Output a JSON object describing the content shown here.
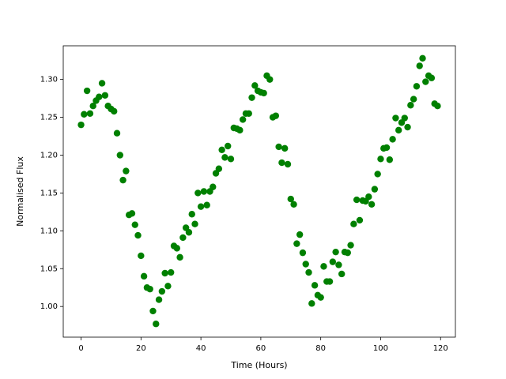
{
  "chart_data": {
    "type": "scatter",
    "xlabel": "Time (Hours)",
    "ylabel": "Normalised Flux",
    "color": "#008000",
    "x": [
      0,
      1,
      2,
      3,
      4,
      5,
      6,
      7,
      8,
      9,
      10,
      11,
      12,
      13,
      14,
      15,
      16,
      17,
      18,
      19,
      20,
      21,
      22,
      23,
      24,
      25,
      26,
      27,
      28,
      29,
      30,
      31,
      32,
      33,
      34,
      35,
      36,
      37,
      38,
      39,
      40,
      41,
      42,
      43,
      44,
      45,
      46,
      47,
      48,
      49,
      50,
      51,
      52,
      53,
      54,
      55,
      56,
      57,
      58,
      59,
      60,
      61,
      62,
      63,
      64,
      65,
      66,
      67,
      68,
      69,
      70,
      71,
      72,
      73,
      74,
      75,
      76,
      77,
      78,
      79,
      80,
      81,
      82,
      83,
      84,
      85,
      86,
      87,
      88,
      89,
      90,
      91,
      92,
      93,
      94,
      95,
      96,
      97,
      98,
      99,
      100,
      101,
      102,
      103,
      104,
      105,
      106,
      107,
      108,
      109,
      110,
      111,
      112,
      113,
      114,
      115,
      116,
      117,
      118,
      119
    ],
    "values": [
      1.24,
      1.254,
      1.285,
      1.255,
      1.265,
      1.272,
      1.277,
      1.295,
      1.279,
      1.265,
      1.261,
      1.258,
      1.229,
      1.2,
      1.167,
      1.179,
      1.121,
      1.123,
      1.108,
      1.094,
      1.067,
      1.04,
      1.025,
      1.023,
      0.994,
      0.977,
      1.009,
      1.02,
      1.044,
      1.027,
      1.045,
      1.08,
      1.077,
      1.065,
      1.091,
      1.104,
      1.098,
      1.122,
      1.109,
      1.15,
      1.132,
      1.152,
      1.134,
      1.152,
      1.158,
      1.176,
      1.182,
      1.207,
      1.197,
      1.212,
      1.195,
      1.236,
      1.235,
      1.233,
      1.247,
      1.255,
      1.255,
      1.276,
      1.292,
      1.285,
      1.283,
      1.282,
      1.305,
      1.3,
      1.25,
      1.252,
      1.211,
      1.19,
      1.209,
      1.188,
      1.142,
      1.135,
      1.083,
      1.095,
      1.071,
      1.056,
      1.045,
      1.004,
      1.028,
      1.015,
      1.012,
      1.053,
      1.033,
      1.033,
      1.059,
      1.072,
      1.055,
      1.043,
      1.072,
      1.071,
      1.081,
      1.109,
      1.141,
      1.114,
      1.14,
      1.139,
      1.145,
      1.135,
      1.155,
      1.175,
      1.195,
      1.209,
      1.21,
      1.194,
      1.221,
      1.249,
      1.233,
      1.243,
      1.249,
      1.237,
      1.266,
      1.274,
      1.291,
      1.318,
      1.328,
      1.297,
      1.305,
      1.302,
      1.268,
      1.265
    ],
    "xlim": [
      -5.95,
      124.95
    ],
    "xticks": [
      0,
      20,
      40,
      60,
      80,
      100,
      120
    ],
    "ylim": [
      0.9595,
      1.3445
    ],
    "yticks": [
      {
        "value": 1,
        "label": "1.00"
      },
      1.05,
      {
        "value": 1.1,
        "label": "1.10"
      },
      1.15,
      {
        "value": 1.2,
        "label": "1.20"
      },
      1.25,
      {
        "value": 1.3,
        "label": "1.30"
      }
    ]
  }
}
